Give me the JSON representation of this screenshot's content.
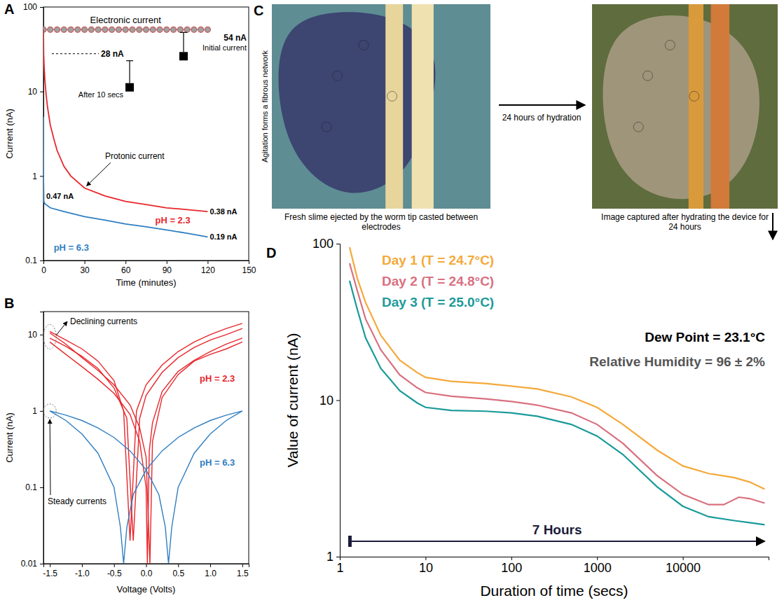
{
  "chart_data": [
    {
      "panel": "A",
      "type": "line",
      "log": "y",
      "xlim": [
        0,
        150
      ],
      "xticks": [
        0,
        30,
        60,
        90,
        120,
        150
      ],
      "ylim": [
        0.1,
        100
      ],
      "yticks": [
        0.1,
        1,
        10,
        100
      ],
      "x_label": "Time (minutes)",
      "y_label": "Current (nA)",
      "series": [
        {
          "name": "Electronic current",
          "color": "#a0a0a0",
          "marker": "circle",
          "x": [
            0,
            5,
            10,
            15,
            20,
            25,
            30,
            35,
            40,
            45,
            50,
            55,
            60,
            65,
            70,
            75,
            80,
            85,
            90,
            95,
            100,
            105,
            110,
            115,
            120
          ],
          "values": [
            54,
            54,
            54,
            54,
            54,
            54,
            54,
            54,
            54,
            54,
            54,
            54,
            54,
            54,
            54,
            54,
            54,
            54,
            54,
            54,
            54,
            54,
            54,
            54,
            54
          ]
        },
        {
          "name": "pH = 2.3",
          "color": "#e8262b",
          "x": [
            0,
            0.17,
            0.5,
            1,
            2,
            3,
            5,
            8,
            10,
            15,
            20,
            30,
            45,
            60,
            75,
            90,
            105,
            120
          ],
          "values": [
            54,
            28,
            20,
            14,
            9,
            6.5,
            4,
            2.6,
            2,
            1.3,
            1,
            0.72,
            0.58,
            0.5,
            0.46,
            0.42,
            0.4,
            0.38
          ]
        },
        {
          "name": "pH = 6.3",
          "color": "#2f7fc1",
          "x": [
            0,
            0.05,
            0.3,
            1,
            5,
            15,
            30,
            45,
            60,
            75,
            90,
            105,
            120
          ],
          "values": [
            5,
            0.9,
            0.5,
            0.47,
            0.42,
            0.38,
            0.33,
            0.3,
            0.27,
            0.25,
            0.23,
            0.21,
            0.19
          ]
        }
      ],
      "annotations": [
        {
          "text": "54 nA",
          "value": 54
        },
        {
          "text": "Initial current"
        },
        {
          "text": "28 nA",
          "value": 28
        },
        {
          "text": "After 10 secs"
        },
        {
          "text": "Protonic current"
        },
        {
          "text": "0.38 nA",
          "value": 0.38
        },
        {
          "text": "0.47 nA",
          "value": 0.47
        },
        {
          "text": "0.19 nA",
          "value": 0.19
        }
      ]
    },
    {
      "panel": "B",
      "type": "line",
      "log": "y",
      "xlim": [
        -1.6,
        1.6
      ],
      "xticks": [
        -1.5,
        {
          "value": -1,
          "label": "-1.0"
        },
        -0.5,
        {
          "value": 0,
          "label": "0.0"
        },
        0.5,
        {
          "value": 1,
          "label": "1.0"
        },
        1.5
      ],
      "ylim": [
        0.01,
        20
      ],
      "yticks": [
        0.01,
        0.1,
        1,
        10
      ],
      "x_label": "Voltage (Volts)",
      "y_label": "Current (nA)",
      "series": [
        {
          "color": "#e8262b",
          "x": [
            -1.5,
            -1.25,
            -1,
            -0.75,
            -0.5,
            -0.35,
            -0.25,
            -0.15,
            0,
            0.25,
            0.5,
            0.75,
            1,
            1.25,
            1.5
          ],
          "values": [
            11,
            8.5,
            6.5,
            4.5,
            2.5,
            1,
            0.02,
            1,
            2.2,
            4,
            6,
            8,
            10,
            12,
            14
          ]
        },
        {
          "color": "#e8262b",
          "x": [
            -1.5,
            -1.25,
            -1,
            -0.75,
            -0.5,
            -0.3,
            -0.2,
            -0.1,
            0,
            0.25,
            0.5,
            0.75,
            1,
            1.25,
            1.5
          ],
          "values": [
            9,
            7,
            5.2,
            3.6,
            2,
            0.8,
            0.02,
            0.8,
            1.6,
            3.2,
            5,
            6.8,
            8.5,
            10,
            12
          ]
        },
        {
          "color": "#e8262b",
          "x": [
            -1.5,
            -1.25,
            -1,
            -0.75,
            -0.5,
            -0.25,
            -0.1,
            0,
            0.02,
            0.05,
            0.1,
            0.25,
            0.5,
            0.75,
            1,
            1.25,
            1.5
          ],
          "values": [
            8,
            5.5,
            3.8,
            2.6,
            1.7,
            0.9,
            0.4,
            0.1,
            0.01,
            0.3,
            0.7,
            1.8,
            3.3,
            4.6,
            6,
            7.5,
            9
          ]
        },
        {
          "color": "#e8262b",
          "x": [
            -1.5,
            -1.25,
            -1,
            -0.75,
            -0.5,
            -0.25,
            -0.1,
            0,
            0.06,
            0.1,
            0.25,
            0.5,
            0.75,
            1,
            1.25,
            1.5
          ],
          "values": [
            10.5,
            7.5,
            5,
            3.4,
            2.2,
            1.2,
            0.6,
            0.25,
            0.01,
            0.4,
            1.5,
            3,
            4.5,
            5.5,
            6.5,
            8
          ]
        },
        {
          "color": "#2f7fc1",
          "x": [
            -1.5,
            -1.25,
            -1,
            -0.75,
            -0.5,
            -0.4,
            -0.35,
            -0.3,
            -0.2,
            0,
            0.25,
            0.5,
            0.75,
            1,
            1.25,
            1.5
          ],
          "values": [
            1,
            0.75,
            0.5,
            0.28,
            0.1,
            0.03,
            0.01,
            0.03,
            0.08,
            0.17,
            0.3,
            0.45,
            0.6,
            0.75,
            0.88,
            1
          ]
        },
        {
          "color": "#2f7fc1",
          "x": [
            -1.5,
            -1.25,
            -1,
            -0.75,
            -0.5,
            -0.25,
            0,
            0.2,
            0.3,
            0.35,
            0.4,
            0.5,
            0.75,
            1,
            1.25,
            1.5
          ],
          "values": [
            1,
            0.88,
            0.75,
            0.6,
            0.45,
            0.3,
            0.17,
            0.08,
            0.03,
            0.01,
            0.03,
            0.1,
            0.28,
            0.5,
            0.75,
            1
          ]
        }
      ],
      "annotations": [
        {
          "text": "Declining currents"
        },
        {
          "text": "Steady currents"
        },
        {
          "text": "pH = 2.3",
          "color": "#e8262b"
        },
        {
          "text": "pH = 6.3",
          "color": "#2f7fc1"
        }
      ]
    },
    {
      "panel": "D",
      "type": "line",
      "log": true,
      "legend": "upper left",
      "xlim": [
        1,
        100000
      ],
      "xticks": [
        1,
        10,
        100,
        1000,
        10000
      ],
      "ylim": [
        1,
        100
      ],
      "yticks": [
        1,
        10,
        100
      ],
      "x_label": "Duration of time (secs)",
      "y_label": "Value of current (nA)",
      "series": [
        {
          "name": "Day 1 (T = 24.7°C)",
          "color": "#f4a93a",
          "x": [
            1.3,
            1.6,
            2,
            3,
            5,
            8,
            10,
            20,
            50,
            100,
            200,
            500,
            1000,
            2000,
            5000,
            10000,
            20000,
            40000,
            60000,
            90000
          ],
          "values": [
            95,
            60,
            42,
            26,
            18,
            15,
            14,
            13.2,
            12.8,
            12.3,
            11.8,
            10.5,
            9,
            7,
            4.8,
            3.8,
            3.4,
            3.2,
            3,
            2.7
          ]
        },
        {
          "name": "Day 2 (T = 24.8°C)",
          "color": "#d9707f",
          "x": [
            1.3,
            1.6,
            2,
            3,
            5,
            8,
            10,
            20,
            50,
            100,
            200,
            500,
            1000,
            2000,
            5000,
            10000,
            20000,
            30000,
            45000,
            60000,
            90000
          ],
          "values": [
            75,
            50,
            33,
            21,
            14.5,
            12,
            11.2,
            10.6,
            10.2,
            9.8,
            9.3,
            8.3,
            7,
            5.3,
            3.3,
            2.5,
            2.15,
            2.15,
            2.4,
            2.35,
            2.2
          ]
        },
        {
          "name": "Day 3 (T = 25.0°C)",
          "color": "#1a9a99",
          "x": [
            1.3,
            1.6,
            2,
            3,
            5,
            8,
            10,
            20,
            50,
            100,
            200,
            500,
            1000,
            2000,
            5000,
            10000,
            20000,
            40000,
            60000,
            90000
          ],
          "values": [
            58,
            38,
            25,
            16,
            11.5,
            9.6,
            9,
            8.6,
            8.5,
            8.3,
            7.9,
            7,
            5.9,
            4.5,
            2.8,
            2.1,
            1.8,
            1.7,
            1.65,
            1.6
          ]
        }
      ],
      "annotations": [
        {
          "text": "Dew Point = 23.1°C",
          "color": "#000000"
        },
        {
          "text": "Relative Humidity = 96 ± 2%",
          "color": "#555555"
        },
        {
          "text": "7 Hours"
        }
      ]
    }
  ],
  "panel_c": {
    "panel": "C",
    "side_label": "Agitation forms a fibrous network",
    "images": [
      {
        "caption": "Fresh slime ejected by the worm tip casted between electrodes"
      },
      {
        "caption": "Image captured after hydrating the device for 24 hours"
      }
    ],
    "arrow_label": "24 hours of hydration"
  }
}
